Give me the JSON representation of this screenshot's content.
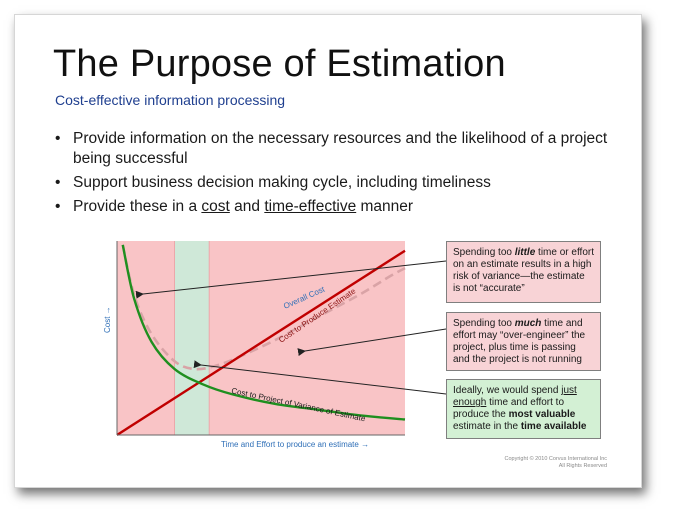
{
  "slide": {
    "title": "The Purpose of Estimation",
    "subtitle": "Cost-effective information processing",
    "bullets": [
      {
        "text": "Provide information on the necessary resources and the likelihood of a project being successful"
      },
      {
        "text": "Support business decision making cycle, including timeliness"
      },
      {
        "prefix": "Provide these in a ",
        "link1": "cost",
        "mid": " and ",
        "link2": "time-effective",
        "suffix": " manner"
      }
    ],
    "bullet_glyph": "•"
  },
  "chart_data": {
    "type": "line",
    "xlabel": "Time and Effort to produce an estimate →",
    "ylabel": "Cost →",
    "xlim": [
      0,
      100
    ],
    "ylim": [
      0,
      100
    ],
    "zones": [
      {
        "name": "too-little",
        "from": 0,
        "to": 20,
        "color": "#f9c4c6"
      },
      {
        "name": "just-enough",
        "from": 20,
        "to": 32,
        "color": "#cfe8d8"
      },
      {
        "name": "too-much",
        "from": 32,
        "to": 100,
        "color": "#f9c4c6"
      }
    ],
    "series": [
      {
        "name": "Overall Cost",
        "color": "#d9a3a6",
        "style": "dashed",
        "x": [
          2,
          6,
          12,
          20,
          27,
          35,
          45,
          55,
          65,
          75,
          85,
          95,
          100
        ],
        "y": [
          98,
          72,
          52,
          38,
          34,
          36,
          42,
          49,
          57,
          65,
          73,
          82,
          86
        ]
      },
      {
        "name": "Cost to Produce Estimate",
        "color": "#c00000",
        "style": "solid",
        "x": [
          0,
          100
        ],
        "y": [
          0,
          95
        ]
      },
      {
        "name": "Cost to Project of Variance of Estimate",
        "color": "#1f8f1f",
        "style": "solid",
        "x": [
          2,
          6,
          12,
          20,
          30,
          40,
          55,
          70,
          85,
          100
        ],
        "y": [
          98,
          70,
          48,
          34,
          26,
          21,
          16,
          13,
          10,
          8
        ]
      }
    ],
    "grid": false,
    "legend": "none"
  },
  "callouts": {
    "c1": {
      "pre": "Spending too ",
      "emph": "little",
      "post": " time or effort on an estimate results in a high risk of variance—the estimate is not “accurate”"
    },
    "c2": {
      "pre": "Spending too ",
      "emph": "much",
      "post": " time and effort may “over-engineer” the project, plus time is passing and the project is not running"
    },
    "c3": {
      "a": "Ideally, we would spend ",
      "b": "just enough",
      "c": " time and effort to produce the ",
      "d": "most valuable",
      "e": " estimate in the ",
      "f": "time available"
    }
  },
  "copyright": {
    "line1": "Copyright © 2010 Corvus International Inc",
    "line2": "All Rights Reserved"
  },
  "colors": {
    "title": "#111111",
    "subtitle": "#1f3f8f",
    "axis_label": "#2f6fb7"
  }
}
